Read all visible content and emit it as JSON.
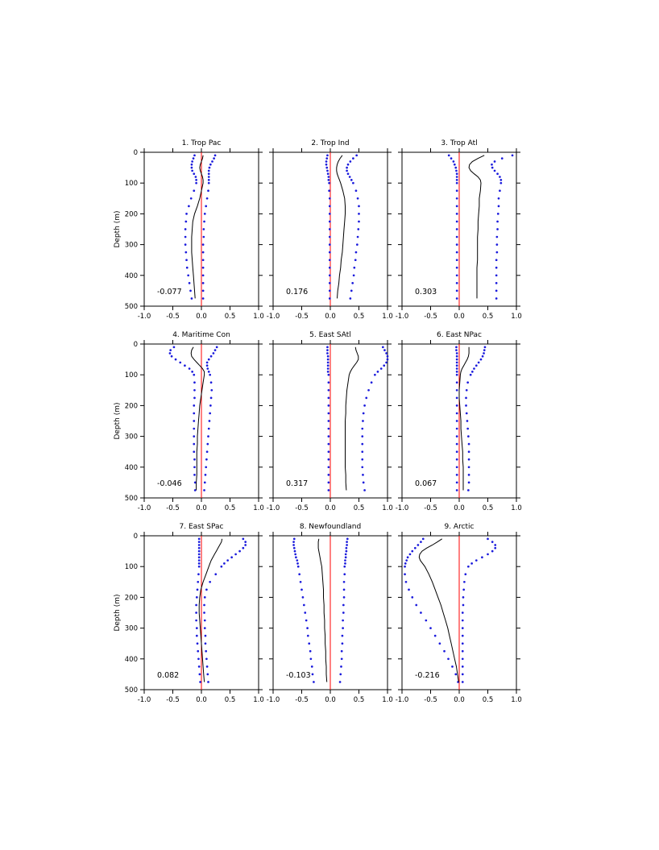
{
  "chart_data": {
    "type": "line",
    "ylabel": "Depth (m)",
    "ylim": [
      500,
      0
    ],
    "xlim": [
      -1.0,
      1.0
    ],
    "x_ticks": [
      "-1.0",
      "-0.5",
      "0.0",
      "0.5",
      "1.0"
    ],
    "y_ticks": [
      "0",
      "100",
      "200",
      "300",
      "400",
      "500"
    ],
    "depths": [
      10,
      20,
      30,
      40,
      50,
      60,
      70,
      80,
      90,
      100,
      125,
      150,
      175,
      200,
      225,
      250,
      275,
      300,
      325,
      350,
      375,
      400,
      425,
      450,
      475
    ],
    "colors": {
      "mean": "#000000",
      "bounds": "#1a1adc",
      "zero_line": "#ff0000"
    },
    "panels": [
      {
        "title": "1. Trop Pac",
        "value_label": "-0.077",
        "mean": [
          0.03,
          0.02,
          0.0,
          -0.02,
          -0.03,
          -0.02,
          0.0,
          0.02,
          0.03,
          0.03,
          0.0,
          -0.03,
          -0.07,
          -0.12,
          -0.15,
          -0.16,
          -0.17,
          -0.17,
          -0.17,
          -0.16,
          -0.15,
          -0.14,
          -0.13,
          -0.12,
          -0.11
        ],
        "lower": [
          -0.12,
          -0.14,
          -0.16,
          -0.17,
          -0.17,
          -0.16,
          -0.13,
          -0.1,
          -0.09,
          -0.09,
          -0.13,
          -0.18,
          -0.22,
          -0.26,
          -0.27,
          -0.28,
          -0.28,
          -0.28,
          -0.27,
          -0.26,
          -0.25,
          -0.23,
          -0.21,
          -0.19,
          -0.17
        ],
        "upper": [
          0.24,
          0.22,
          0.19,
          0.16,
          0.14,
          0.13,
          0.13,
          0.13,
          0.13,
          0.13,
          0.12,
          0.1,
          0.08,
          0.06,
          0.05,
          0.04,
          0.04,
          0.03,
          0.03,
          0.03,
          0.03,
          0.03,
          0.03,
          0.03,
          0.03
        ]
      },
      {
        "title": "2. Trop Ind",
        "value_label": "0.176",
        "mean": [
          0.21,
          0.17,
          0.14,
          0.12,
          0.11,
          0.11,
          0.12,
          0.14,
          0.16,
          0.18,
          0.22,
          0.25,
          0.26,
          0.26,
          0.25,
          0.24,
          0.23,
          0.22,
          0.21,
          0.19,
          0.18,
          0.16,
          0.15,
          0.13,
          0.12
        ],
        "lower": [
          -0.05,
          -0.06,
          -0.07,
          -0.07,
          -0.06,
          -0.05,
          -0.04,
          -0.03,
          -0.03,
          -0.02,
          -0.02,
          -0.01,
          -0.01,
          -0.01,
          -0.01,
          -0.01,
          -0.01,
          -0.01,
          -0.01,
          -0.01,
          -0.01,
          -0.01,
          -0.01,
          -0.01,
          -0.01
        ],
        "upper": [
          0.46,
          0.4,
          0.35,
          0.31,
          0.29,
          0.29,
          0.31,
          0.34,
          0.37,
          0.4,
          0.45,
          0.48,
          0.5,
          0.5,
          0.5,
          0.49,
          0.48,
          0.47,
          0.45,
          0.44,
          0.42,
          0.41,
          0.39,
          0.37,
          0.35
        ]
      },
      {
        "title": "3. Trop Atl",
        "value_label": "0.303",
        "mean": [
          0.44,
          0.33,
          0.23,
          0.18,
          0.17,
          0.2,
          0.26,
          0.33,
          0.37,
          0.38,
          0.37,
          0.35,
          0.35,
          0.34,
          0.33,
          0.33,
          0.32,
          0.32,
          0.32,
          0.32,
          0.31,
          0.31,
          0.31,
          0.31,
          0.31
        ],
        "lower": [
          -0.18,
          -0.14,
          -0.1,
          -0.08,
          -0.06,
          -0.05,
          -0.04,
          -0.04,
          -0.04,
          -0.04,
          -0.04,
          -0.04,
          -0.04,
          -0.04,
          -0.04,
          -0.04,
          -0.04,
          -0.04,
          -0.04,
          -0.04,
          -0.04,
          -0.04,
          -0.04,
          -0.04,
          -0.04
        ],
        "upper": [
          0.93,
          0.75,
          0.62,
          0.57,
          0.58,
          0.62,
          0.67,
          0.71,
          0.73,
          0.73,
          0.71,
          0.69,
          0.69,
          0.68,
          0.67,
          0.67,
          0.66,
          0.66,
          0.66,
          0.65,
          0.65,
          0.65,
          0.65,
          0.65,
          0.65
        ]
      },
      {
        "title": "4. Maritime Con",
        "value_label": "-0.046",
        "mean": [
          -0.14,
          -0.17,
          -0.18,
          -0.17,
          -0.13,
          -0.08,
          -0.03,
          0.02,
          0.05,
          0.05,
          0.03,
          0.01,
          -0.01,
          -0.03,
          -0.04,
          -0.05,
          -0.06,
          -0.07,
          -0.07,
          -0.08,
          -0.08,
          -0.08,
          -0.08,
          -0.09,
          -0.09
        ],
        "lower": [
          -0.48,
          -0.54,
          -0.55,
          -0.52,
          -0.45,
          -0.37,
          -0.29,
          -0.21,
          -0.16,
          -0.13,
          -0.12,
          -0.12,
          -0.12,
          -0.13,
          -0.13,
          -0.13,
          -0.13,
          -0.13,
          -0.13,
          -0.13,
          -0.12,
          -0.12,
          -0.12,
          -0.11,
          -0.11
        ],
        "upper": [
          0.27,
          0.24,
          0.21,
          0.17,
          0.13,
          0.1,
          0.1,
          0.11,
          0.13,
          0.15,
          0.17,
          0.18,
          0.17,
          0.16,
          0.15,
          0.14,
          0.13,
          0.12,
          0.11,
          0.1,
          0.09,
          0.08,
          0.07,
          0.06,
          0.05
        ]
      },
      {
        "title": "5. East SAtl",
        "value_label": "0.317",
        "mean": [
          0.44,
          0.45,
          0.47,
          0.49,
          0.49,
          0.46,
          0.42,
          0.38,
          0.35,
          0.33,
          0.31,
          0.29,
          0.28,
          0.27,
          0.27,
          0.26,
          0.26,
          0.26,
          0.26,
          0.26,
          0.26,
          0.26,
          0.27,
          0.27,
          0.28
        ],
        "lower": [
          -0.05,
          -0.05,
          -0.05,
          -0.04,
          -0.04,
          -0.04,
          -0.04,
          -0.04,
          -0.04,
          -0.03,
          -0.03,
          -0.03,
          -0.03,
          -0.03,
          -0.03,
          -0.03,
          -0.03,
          -0.03,
          -0.03,
          -0.03,
          -0.03,
          -0.03,
          -0.03,
          -0.03,
          -0.03
        ],
        "upper": [
          0.92,
          0.95,
          0.98,
          1.0,
          1.0,
          0.98,
          0.94,
          0.89,
          0.83,
          0.78,
          0.72,
          0.67,
          0.63,
          0.6,
          0.58,
          0.57,
          0.56,
          0.56,
          0.56,
          0.56,
          0.56,
          0.56,
          0.57,
          0.58,
          0.6
        ]
      },
      {
        "title": "6. East NPac",
        "value_label": "0.067",
        "mean": [
          0.17,
          0.17,
          0.17,
          0.16,
          0.14,
          0.11,
          0.08,
          0.05,
          0.03,
          0.02,
          0.01,
          0.0,
          0.0,
          0.01,
          0.02,
          0.03,
          0.03,
          0.04,
          0.05,
          0.06,
          0.06,
          0.07,
          0.07,
          0.07,
          0.07
        ],
        "lower": [
          -0.05,
          -0.05,
          -0.04,
          -0.04,
          -0.04,
          -0.04,
          -0.04,
          -0.04,
          -0.04,
          -0.04,
          -0.04,
          -0.04,
          -0.04,
          -0.04,
          -0.04,
          -0.04,
          -0.04,
          -0.04,
          -0.04,
          -0.04,
          -0.04,
          -0.04,
          -0.04,
          -0.04,
          -0.04
        ],
        "upper": [
          0.45,
          0.44,
          0.43,
          0.41,
          0.38,
          0.34,
          0.3,
          0.26,
          0.23,
          0.2,
          0.15,
          0.13,
          0.12,
          0.12,
          0.13,
          0.14,
          0.15,
          0.16,
          0.17,
          0.17,
          0.17,
          0.17,
          0.17,
          0.17,
          0.16
        ]
      },
      {
        "title": "7. East SPac",
        "value_label": "0.082",
        "mean": [
          0.36,
          0.35,
          0.32,
          0.29,
          0.26,
          0.23,
          0.2,
          0.17,
          0.15,
          0.13,
          0.08,
          0.03,
          -0.01,
          -0.03,
          -0.04,
          -0.04,
          -0.03,
          -0.02,
          -0.01,
          0.0,
          0.01,
          0.02,
          0.03,
          0.04,
          0.05
        ],
        "lower": [
          -0.04,
          -0.04,
          -0.04,
          -0.04,
          -0.04,
          -0.04,
          -0.04,
          -0.04,
          -0.04,
          -0.04,
          -0.05,
          -0.06,
          -0.07,
          -0.08,
          -0.09,
          -0.09,
          -0.09,
          -0.08,
          -0.08,
          -0.07,
          -0.06,
          -0.05,
          -0.04,
          -0.03,
          -0.02
        ],
        "upper": [
          0.73,
          0.77,
          0.77,
          0.73,
          0.67,
          0.6,
          0.53,
          0.46,
          0.4,
          0.35,
          0.25,
          0.15,
          0.09,
          0.06,
          0.05,
          0.05,
          0.06,
          0.06,
          0.07,
          0.07,
          0.08,
          0.09,
          0.1,
          0.11,
          0.12
        ]
      },
      {
        "title": "8. Newfoundland",
        "value_label": "-0.103",
        "mean": [
          -0.2,
          -0.21,
          -0.21,
          -0.21,
          -0.2,
          -0.19,
          -0.18,
          -0.17,
          -0.16,
          -0.15,
          -0.14,
          -0.13,
          -0.12,
          -0.12,
          -0.11,
          -0.11,
          -0.1,
          -0.1,
          -0.09,
          -0.09,
          -0.08,
          -0.08,
          -0.07,
          -0.07,
          -0.06
        ],
        "lower": [
          -0.63,
          -0.64,
          -0.64,
          -0.63,
          -0.62,
          -0.61,
          -0.6,
          -0.58,
          -0.57,
          -0.56,
          -0.54,
          -0.52,
          -0.5,
          -0.48,
          -0.46,
          -0.44,
          -0.42,
          -0.4,
          -0.39,
          -0.37,
          -0.35,
          -0.34,
          -0.32,
          -0.31,
          -0.29
        ],
        "upper": [
          0.3,
          0.29,
          0.29,
          0.28,
          0.28,
          0.27,
          0.27,
          0.26,
          0.26,
          0.25,
          0.25,
          0.24,
          0.24,
          0.24,
          0.23,
          0.23,
          0.22,
          0.22,
          0.21,
          0.21,
          0.2,
          0.2,
          0.19,
          0.18,
          0.17
        ]
      },
      {
        "title": "9. Arctic",
        "value_label": "-0.216",
        "mean": [
          -0.3,
          -0.38,
          -0.47,
          -0.57,
          -0.65,
          -0.69,
          -0.7,
          -0.68,
          -0.64,
          -0.6,
          -0.53,
          -0.47,
          -0.42,
          -0.37,
          -0.32,
          -0.28,
          -0.24,
          -0.2,
          -0.17,
          -0.14,
          -0.11,
          -0.08,
          -0.05,
          -0.03,
          -0.01
        ],
        "lower": [
          -0.63,
          -0.67,
          -0.72,
          -0.77,
          -0.82,
          -0.86,
          -0.9,
          -0.92,
          -0.94,
          -0.95,
          -0.95,
          -0.93,
          -0.88,
          -0.82,
          -0.75,
          -0.67,
          -0.58,
          -0.5,
          -0.42,
          -0.34,
          -0.26,
          -0.19,
          -0.12,
          -0.06,
          -0.02
        ],
        "upper": [
          0.5,
          0.58,
          0.63,
          0.63,
          0.58,
          0.5,
          0.4,
          0.3,
          0.22,
          0.16,
          0.11,
          0.09,
          0.08,
          0.07,
          0.07,
          0.06,
          0.06,
          0.06,
          0.06,
          0.06,
          0.06,
          0.06,
          0.06,
          0.06,
          0.06
        ]
      }
    ]
  }
}
